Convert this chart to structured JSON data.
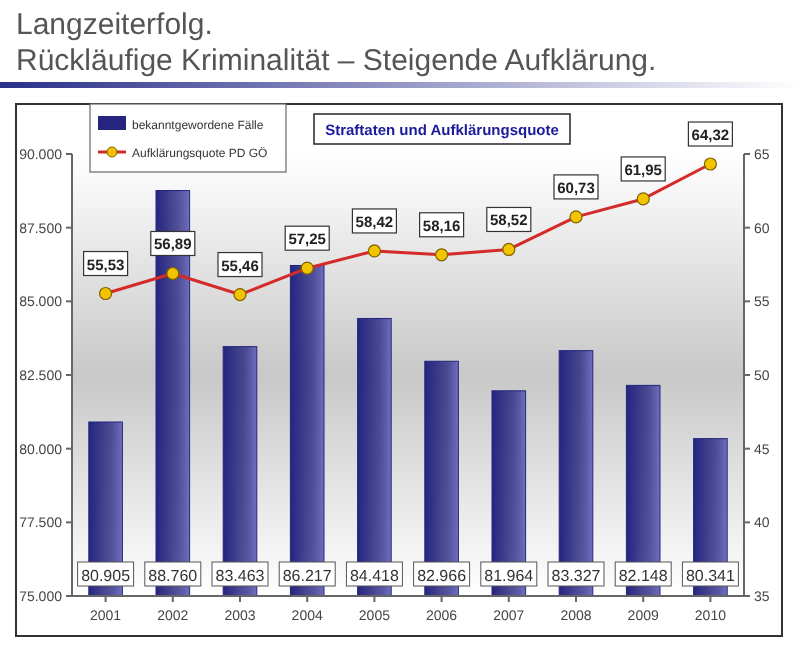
{
  "chart_data": {
    "type": "bar",
    "title": "Langzeiterfolg.",
    "subtitle": "Rückläufige Kriminalität – Steigende Aufklärung.",
    "annotations": [
      "Straftaten und Aufklärungsquote"
    ],
    "categories": [
      "2001",
      "2002",
      "2003",
      "2004",
      "2005",
      "2006",
      "2007",
      "2008",
      "2009",
      "2010"
    ],
    "series": [
      {
        "name": "bekanntgewordene Fälle",
        "color": "#25257f",
        "values": [
          80905,
          88760,
          83463,
          86217,
          84418,
          82966,
          81964,
          83327,
          82148,
          80341
        ],
        "value_labels": [
          "80.905",
          "88.760",
          "83.463",
          "86.217",
          "84.418",
          "82.966",
          "81.964",
          "83.327",
          "82.148",
          "80.341"
        ]
      },
      {
        "name": "Aufklärungsquote PD GÖ",
        "type": "line",
        "axis": "y2",
        "color": "#d42a2a",
        "marker": "circle",
        "values": [
          55.53,
          56.89,
          55.46,
          57.25,
          58.42,
          58.16,
          58.52,
          60.73,
          61.95,
          64.32
        ],
        "value_labels": [
          "55,53",
          "56,89",
          "55,46",
          "57,25",
          "58,42",
          "58,16",
          "58,52",
          "60,73",
          "61,95",
          "64,32"
        ]
      }
    ],
    "ylim": [
      75000,
      90000
    ],
    "yticks": [
      {
        "value": 75000,
        "label": "75.000"
      },
      {
        "value": 77500,
        "label": "77.500"
      },
      {
        "value": 80000,
        "label": "80.000"
      },
      {
        "value": 82500,
        "label": "82.500"
      },
      {
        "value": 85000,
        "label": "85.000"
      },
      {
        "value": 87500,
        "label": "87.500"
      },
      {
        "value": 90000,
        "label": "90.000"
      }
    ],
    "y2lim": [
      35,
      65
    ],
    "y2ticks": [
      35,
      40,
      45,
      50,
      55,
      60,
      65
    ],
    "legend": "top left",
    "grid": false
  }
}
